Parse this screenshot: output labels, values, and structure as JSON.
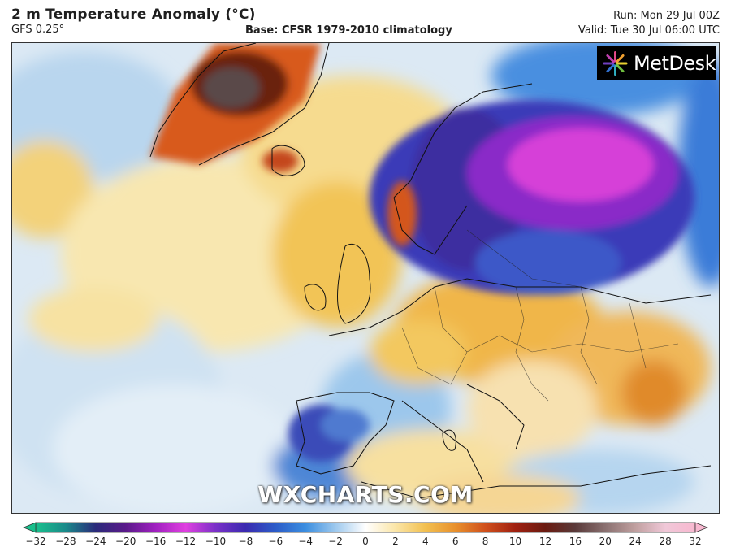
{
  "header": {
    "title": "2 m Temperature Anomaly (°C)",
    "model": "GFS 0.25°",
    "base": "Base: CFSR 1979-2010 climatology",
    "run": "Run: Mon 29 Jul 00Z",
    "valid": "Valid: Tue 30 Jul 06:00 UTC"
  },
  "logo": {
    "text": "MetDesk"
  },
  "watermark": {
    "text": "WXCHARTS.COM"
  },
  "colorbar": {
    "labels": [
      "-32",
      "-28",
      "-24",
      "-20",
      "-16",
      "-12",
      "-10",
      "-8",
      "-6",
      "-4",
      "-2",
      "0",
      "2",
      "4",
      "6",
      "8",
      "10",
      "12",
      "16",
      "20",
      "24",
      "28",
      "32"
    ],
    "colors": [
      "#19c08c",
      "#1a8a8a",
      "#2a2a7a",
      "#5a1a8a",
      "#a020c0",
      "#e040e0",
      "#7a30c8",
      "#3a2ab0",
      "#2c5cc8",
      "#3b8ee0",
      "#9ec9ee",
      "#ffffff",
      "#fbe6a8",
      "#f2c050",
      "#e8902c",
      "#d0501c",
      "#a02010",
      "#6a1a10",
      "#5a3a3a",
      "#8a7070",
      "#c0a0a0",
      "#f0c8d8",
      "#f8b8d0"
    ]
  }
}
